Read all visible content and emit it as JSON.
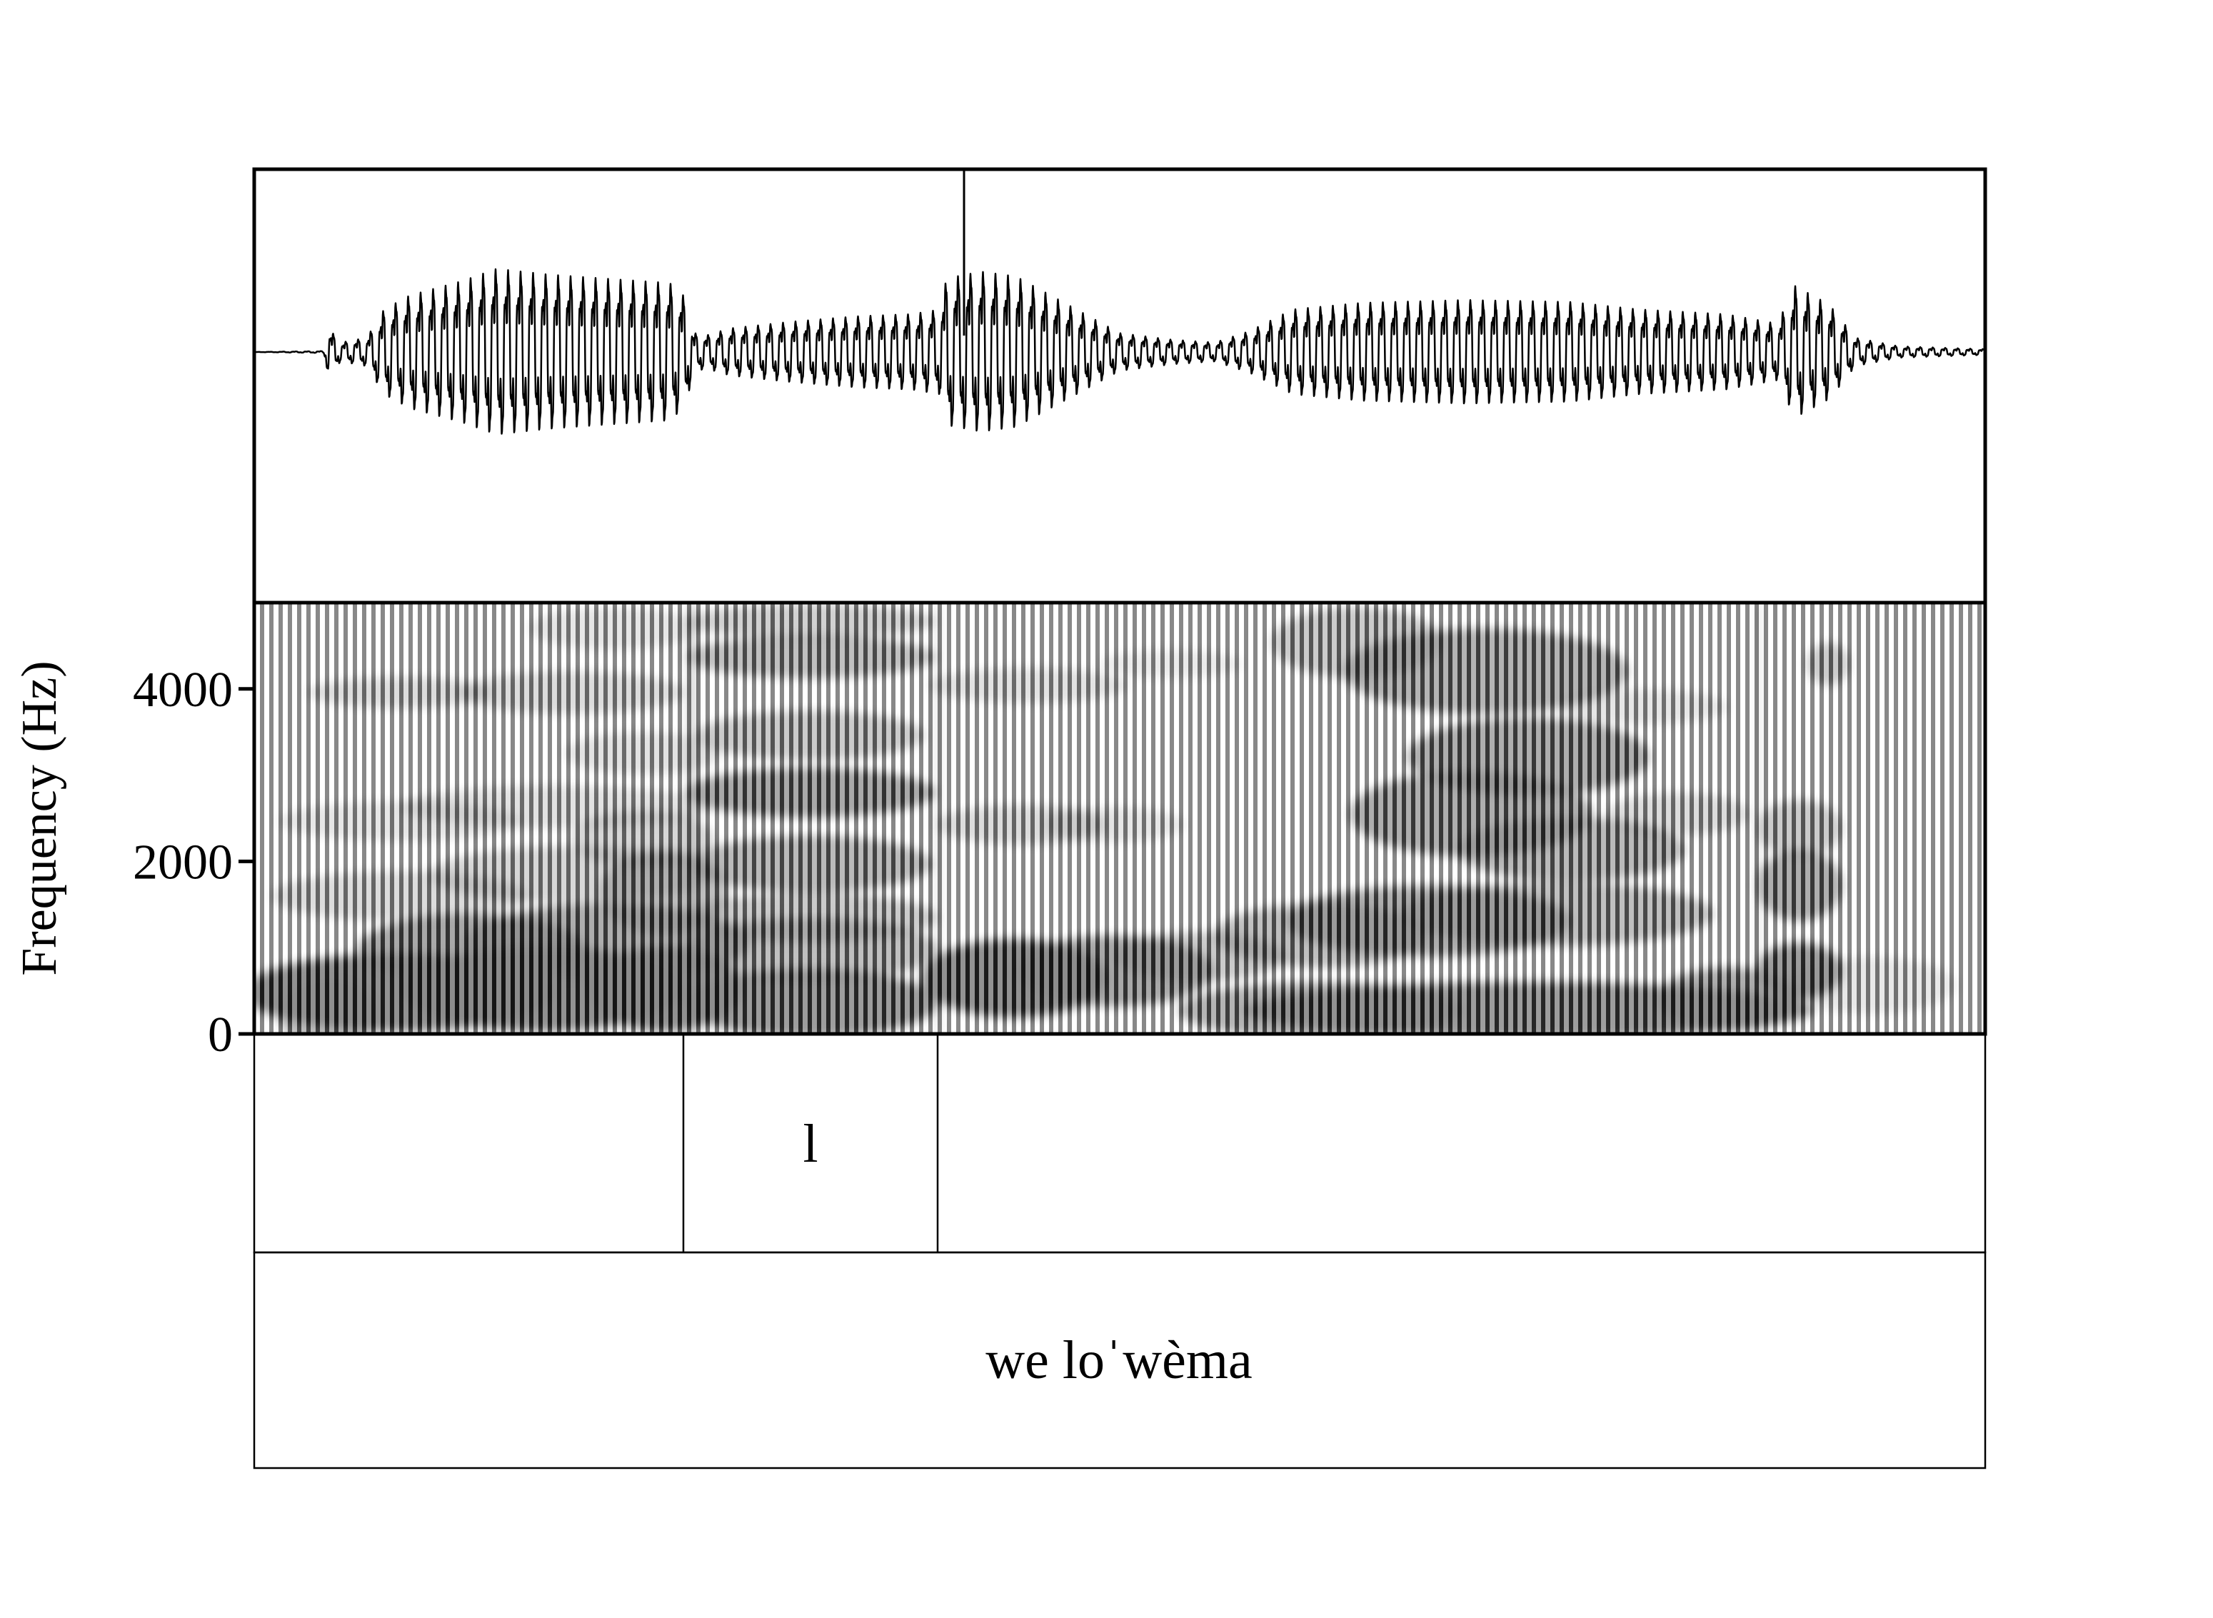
{
  "chart_data": {
    "type": "spectrogram",
    "ylabel": "Frequency (Hz)",
    "ylim": [
      0,
      5000
    ],
    "yticks": [
      {
        "value": 0,
        "label": "0"
      },
      {
        "value": 2000,
        "label": "2000"
      },
      {
        "value": 4000,
        "label": "4000"
      }
    ],
    "colormap": "grayscale",
    "tiers": [
      {
        "intervals": [
          {
            "label": ""
          },
          {
            "label": "l"
          },
          {
            "label": ""
          }
        ]
      },
      {
        "intervals": [
          {
            "label": "we loˈwèma"
          }
        ]
      }
    ]
  }
}
